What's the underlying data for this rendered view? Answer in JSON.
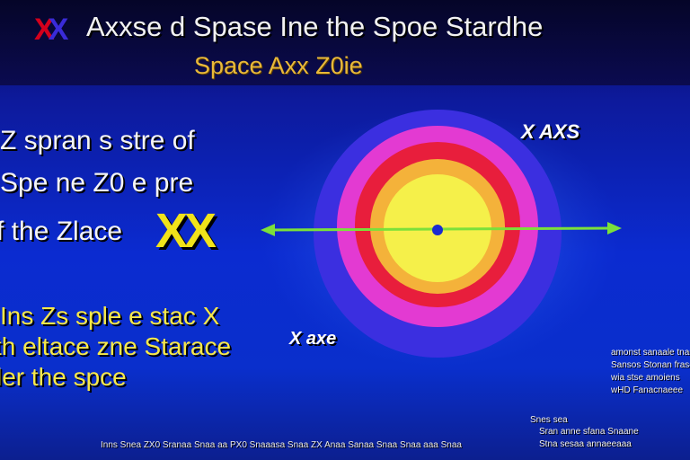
{
  "header": {
    "logo_red": "X",
    "logo_blue": "X",
    "title": "Axxse d Spase Ine the Spoe Stardhe",
    "subtitle": "Space Axx Z0ie"
  },
  "left_panel": {
    "line1": "Z spran s stre of",
    "line2": "Spe ne Z0 e pre",
    "line3": "f the Zlace",
    "big_xx": "XX",
    "yellow1": "Ins Zs sple e stac X",
    "yellow2": "th eltace zne Starace",
    "yellow3": "ler the spce"
  },
  "diagram": {
    "label_top": "X AXS",
    "label_bottom": "X axe",
    "colors": {
      "outer": "#3b2fe0",
      "magenta": "#e33ad2",
      "red": "#e81e3c",
      "orange": "#f4b23a",
      "yellow": "#f5f04a",
      "center": "#1a2bd0",
      "axis": "#7be03a"
    }
  },
  "right_notes": {
    "line1": "amonst sanaale tnan",
    "line2": "Sansos Stonan fraseer",
    "line3": "wia stse amoiens",
    "line4": "wHD Fanacnaeee",
    "line5": "Snes sea",
    "line6": "Sran anne sfana Snaane",
    "line7": "Stna sesaa annaeeaaa"
  },
  "footer": {
    "text": "Inns Snea ZX0 Sranaa Snaa aa PX0 Snaaasa Snaa ZX Anaa Sanaa Snaa Snaa aaa Snaa"
  }
}
